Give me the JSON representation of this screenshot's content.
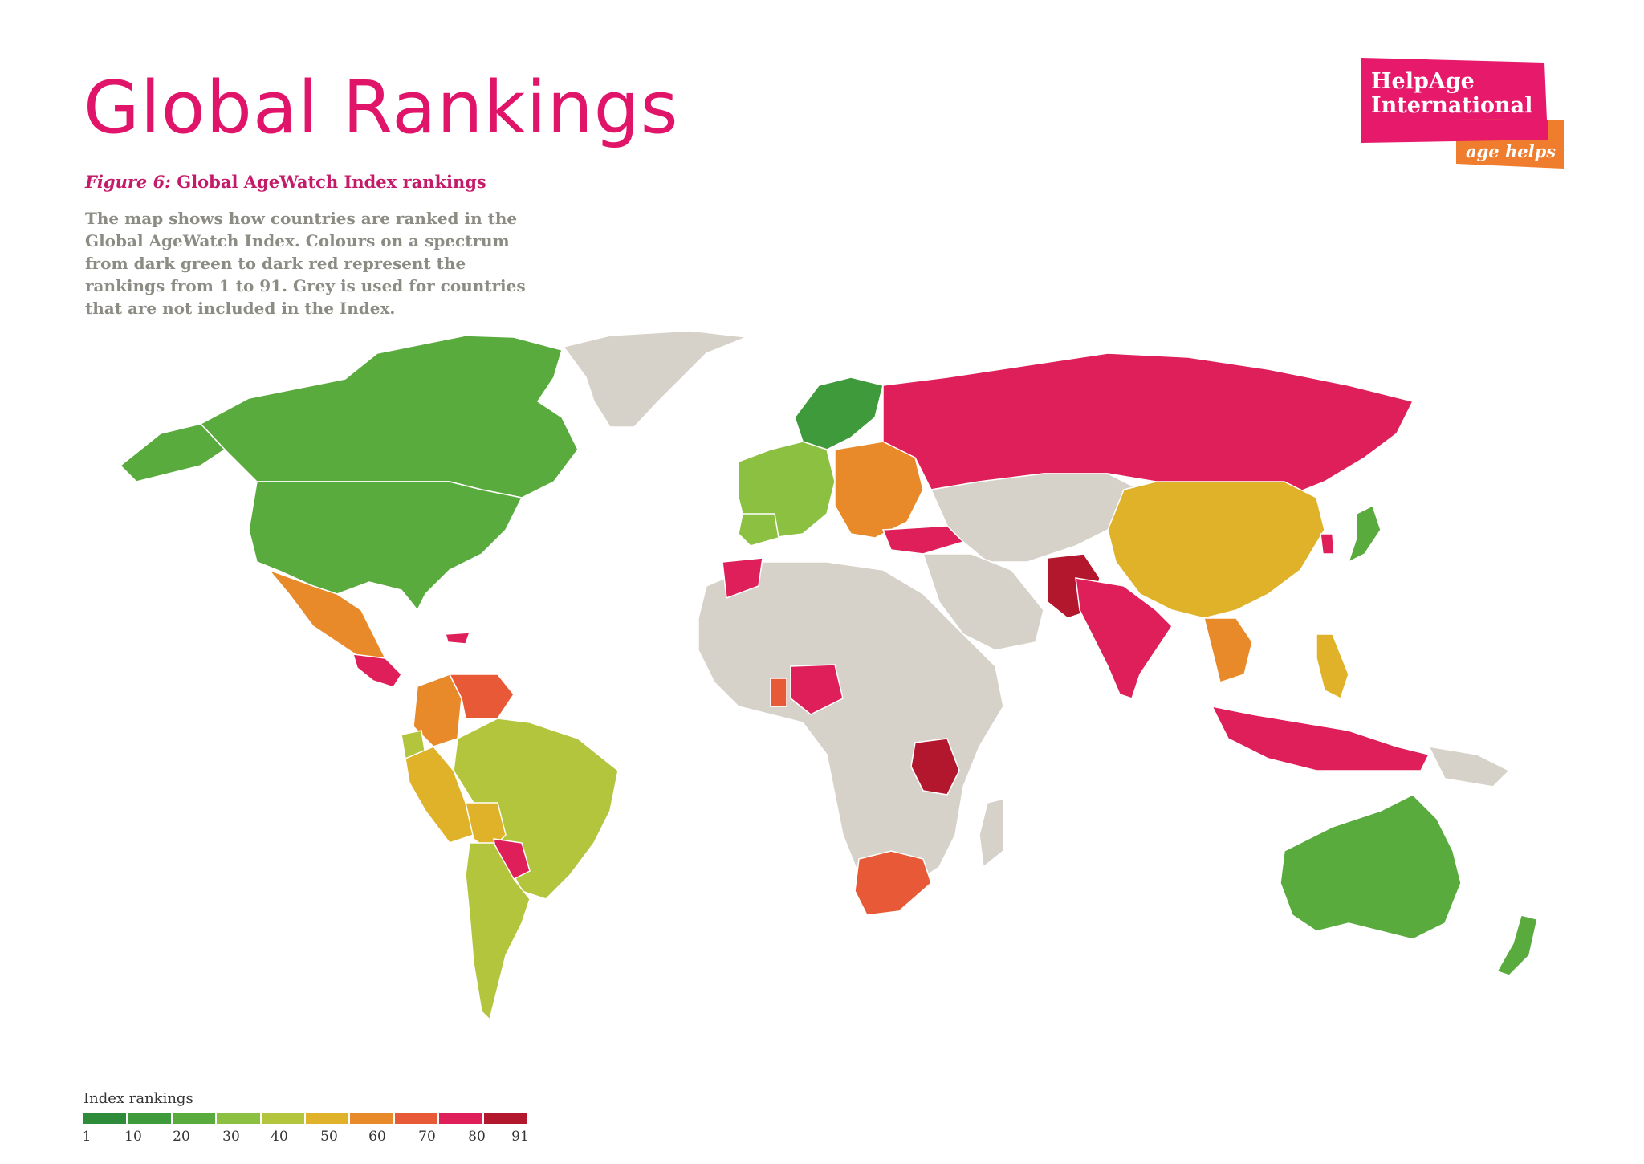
{
  "page": {
    "title": "Global Rankings",
    "figure_label": "Figure 6:",
    "figure_title": "Global AgeWatch Index rankings",
    "description": "The map shows how countries are ranked in the Global AgeWatch Index. Colours on a spectrum from dark green to dark red represent the rankings from 1 to 91. Grey is used for countries that are not included in the Index."
  },
  "logo": {
    "line1": "HelpAge",
    "line2": "International",
    "tagline": "age helps",
    "pink": "#e6196b",
    "orange": "#ef7d2d"
  },
  "legend": {
    "title": "Index rankings",
    "ticks": [
      "1",
      "10",
      "20",
      "30",
      "40",
      "50",
      "60",
      "70",
      "80",
      "91"
    ],
    "colors": [
      "#2e8b3a",
      "#3f9a3c",
      "#5aab3e",
      "#8cc041",
      "#b2c53c",
      "#e0b22a",
      "#e98a2a",
      "#e85a37",
      "#de1f5a",
      "#b3172e"
    ]
  },
  "map": {
    "grey": "#d6d2c9",
    "regions": [
      {
        "name": "Canada",
        "rank_band": 2
      },
      {
        "name": "United States",
        "rank_band": 2
      },
      {
        "name": "Greenland",
        "rank_band": 0
      },
      {
        "name": "Mexico",
        "rank_band": 6
      },
      {
        "name": "Central America",
        "rank_band": 8
      },
      {
        "name": "Colombia",
        "rank_band": 6
      },
      {
        "name": "Venezuela",
        "rank_band": 7
      },
      {
        "name": "Ecuador",
        "rank_band": 4
      },
      {
        "name": "Peru",
        "rank_band": 5
      },
      {
        "name": "Brazil",
        "rank_band": 4
      },
      {
        "name": "Bolivia",
        "rank_band": 5
      },
      {
        "name": "Paraguay",
        "rank_band": 8
      },
      {
        "name": "Argentina",
        "rank_band": 4
      },
      {
        "name": "Chile",
        "rank_band": 4
      },
      {
        "name": "Uruguay",
        "rank_band": 4
      },
      {
        "name": "Scandinavia",
        "rank_band": 1
      },
      {
        "name": "Western Europe",
        "rank_band": 3
      },
      {
        "name": "Eastern Europe",
        "rank_band": 6
      },
      {
        "name": "Turkey",
        "rank_band": 8
      },
      {
        "name": "Russia",
        "rank_band": 8
      },
      {
        "name": "China",
        "rank_band": 5
      },
      {
        "name": "Japan",
        "rank_band": 2
      },
      {
        "name": "India",
        "rank_band": 8
      },
      {
        "name": "Pakistan",
        "rank_band": 9
      },
      {
        "name": "Nigeria",
        "rank_band": 8
      },
      {
        "name": "Tanzania",
        "rank_band": 9
      },
      {
        "name": "South Africa",
        "rank_band": 7
      },
      {
        "name": "Indonesia",
        "rank_band": 8
      },
      {
        "name": "Philippines",
        "rank_band": 5
      },
      {
        "name": "Australia",
        "rank_band": 2
      },
      {
        "name": "New Zealand",
        "rank_band": 2
      }
    ]
  }
}
